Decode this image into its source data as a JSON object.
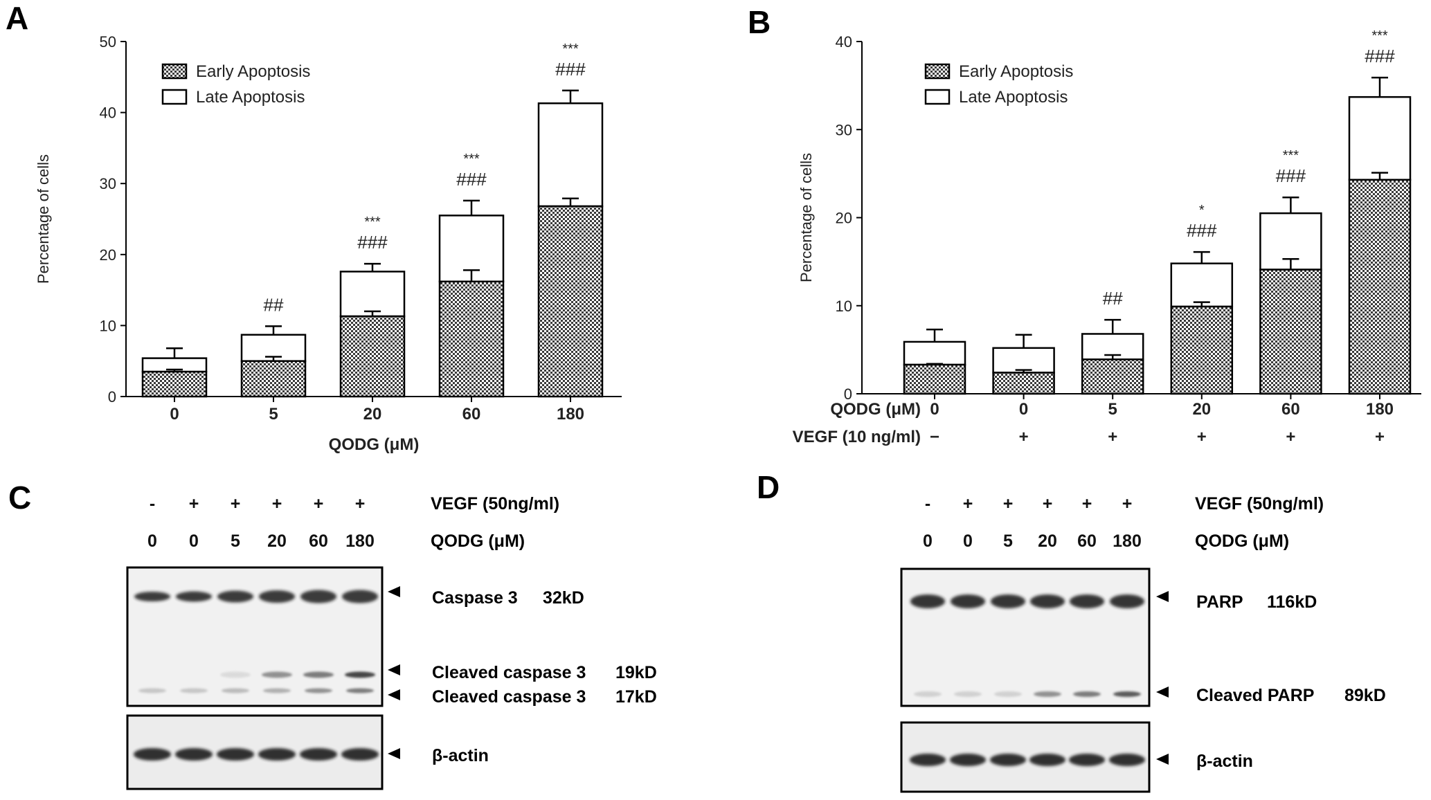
{
  "panels": {
    "A": {
      "label": "A"
    },
    "B": {
      "label": "B"
    },
    "C": {
      "label": "C",
      "vegf_row": [
        "-",
        "+",
        "+",
        "+",
        "+",
        "+"
      ],
      "vegf_label": "VEGF (50ng/ml)",
      "qodg_row": [
        "0",
        "0",
        "5",
        "20",
        "60",
        "180"
      ],
      "qodg_label": "QODG (μM)",
      "bands": [
        {
          "name": "Caspase 3",
          "size": "32kD"
        },
        {
          "name": "Cleaved caspase 3",
          "size": "19kD"
        },
        {
          "name": "Cleaved caspase 3",
          "size": "17kD"
        },
        {
          "name": "β-actin",
          "size": ""
        }
      ]
    },
    "D": {
      "label": "D",
      "vegf_row": [
        "-",
        "+",
        "+",
        "+",
        "+",
        "+"
      ],
      "vegf_label": "VEGF (50ng/ml)",
      "qodg_row": [
        "0",
        "0",
        "5",
        "20",
        "60",
        "180"
      ],
      "qodg_label": "QODG (μM)",
      "bands": [
        {
          "name": "PARP",
          "size": "116kD"
        },
        {
          "name": "Cleaved PARP",
          "size": "89kD"
        },
        {
          "name": "β-actin",
          "size": ""
        }
      ]
    }
  },
  "chart_data": [
    {
      "type": "bar",
      "stacked": true,
      "panel": "A",
      "categories": [
        "0",
        "5",
        "20",
        "60",
        "180"
      ],
      "xlabel": "QODG (μM)",
      "ylabel": "Percentage of cells",
      "ylim": [
        0,
        50
      ],
      "yticks": [
        0,
        10,
        20,
        30,
        40,
        50
      ],
      "legend": "top-left",
      "series": [
        {
          "name": "Early Apoptosis",
          "values": [
            3.5,
            5.0,
            11.3,
            16.2,
            26.8
          ],
          "errors": [
            0.3,
            0.6,
            0.7,
            1.6,
            1.1
          ],
          "fill": "checker"
        },
        {
          "name": "Late Apoptosis",
          "values": [
            1.9,
            3.7,
            6.3,
            9.3,
            14.5
          ],
          "errors": [
            1.4,
            1.2,
            1.1,
            2.1,
            1.8
          ],
          "fill": "#ffffff"
        }
      ],
      "annotations": [
        {
          "category": "5",
          "lines": [
            "##"
          ]
        },
        {
          "category": "20",
          "lines": [
            "***",
            "###"
          ]
        },
        {
          "category": "60",
          "lines": [
            "***",
            "###"
          ]
        },
        {
          "category": "180",
          "lines": [
            "***",
            "###"
          ]
        }
      ]
    },
    {
      "type": "bar",
      "stacked": true,
      "panel": "B",
      "categories": [
        "0",
        "0",
        "5",
        "20",
        "60",
        "180"
      ],
      "category_rows": [
        {
          "label": "QODG (μM)",
          "values": [
            "0",
            "0",
            "5",
            "20",
            "60",
            "180"
          ]
        },
        {
          "label": "VEGF (10 ng/ml)",
          "values": [
            "−",
            "+",
            "+",
            "+",
            "+",
            "+"
          ]
        }
      ],
      "ylabel": "Percentage of cells",
      "ylim": [
        0,
        40
      ],
      "yticks": [
        0,
        10,
        20,
        30,
        40
      ],
      "legend": "top-left",
      "series": [
        {
          "name": "Early Apoptosis",
          "values": [
            3.3,
            2.4,
            3.9,
            9.9,
            14.1,
            24.3
          ],
          "errors": [
            0.1,
            0.3,
            0.5,
            0.5,
            1.2,
            0.8
          ],
          "fill": "checker"
        },
        {
          "name": "Late Apoptosis",
          "values": [
            2.6,
            2.8,
            2.9,
            4.9,
            6.4,
            9.4
          ],
          "errors": [
            1.4,
            1.5,
            1.6,
            1.3,
            1.8,
            2.2
          ],
          "fill": "#ffffff"
        }
      ],
      "annotations": [
        {
          "category_index": 2,
          "lines": [
            "##"
          ]
        },
        {
          "category_index": 3,
          "lines": [
            "*",
            "###"
          ]
        },
        {
          "category_index": 4,
          "lines": [
            "***",
            "###"
          ]
        },
        {
          "category_index": 5,
          "lines": [
            "***",
            "###"
          ]
        }
      ]
    }
  ]
}
